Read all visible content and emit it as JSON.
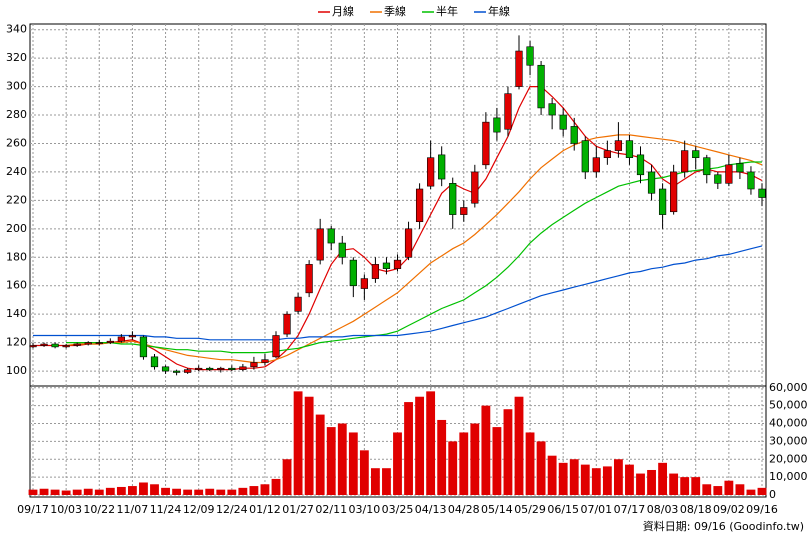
{
  "chart_data": {
    "type": "candlestick",
    "source": "資料日期: 09/16 (Goodinfo.tw)",
    "categories": [
      "09/17",
      null,
      null,
      "10/03",
      null,
      null,
      "10/22",
      null,
      null,
      "11/07",
      null,
      null,
      "11/24",
      null,
      null,
      "12/09",
      null,
      null,
      "12/24",
      null,
      null,
      "01/12",
      null,
      null,
      "01/27",
      null,
      null,
      "02/11",
      null,
      null,
      "03/10",
      null,
      null,
      "03/25",
      null,
      null,
      "04/13",
      null,
      null,
      "04/28",
      null,
      null,
      "05/14",
      null,
      null,
      "05/29",
      null,
      null,
      "06/15",
      null,
      null,
      "07/01",
      null,
      null,
      "07/17",
      null,
      null,
      "08/03",
      null,
      null,
      "08/18",
      null,
      null,
      "09/02",
      null,
      null,
      "09/16"
    ],
    "ohlc": [
      [
        117,
        120,
        116,
        118
      ],
      [
        118,
        120,
        117,
        119
      ],
      [
        119,
        120,
        116,
        117
      ],
      [
        117,
        119,
        116,
        118
      ],
      [
        118,
        120,
        117,
        119
      ],
      [
        119,
        121,
        118,
        120
      ],
      [
        120,
        122,
        118,
        120
      ],
      [
        120,
        123,
        119,
        121
      ],
      [
        121,
        126,
        120,
        124
      ],
      [
        124,
        128,
        122,
        125
      ],
      [
        124,
        125,
        108,
        110
      ],
      [
        110,
        112,
        101,
        103
      ],
      [
        103,
        104,
        98,
        100
      ],
      [
        100,
        101,
        97,
        99
      ],
      [
        99,
        102,
        98,
        101
      ],
      [
        101,
        104,
        100,
        102
      ],
      [
        102,
        103,
        100,
        101
      ],
      [
        101,
        103,
        99,
        102
      ],
      [
        102,
        104,
        100,
        101
      ],
      [
        101,
        105,
        100,
        103
      ],
      [
        103,
        110,
        101,
        106
      ],
      [
        106,
        112,
        104,
        108
      ],
      [
        110,
        128,
        109,
        125
      ],
      [
        126,
        142,
        124,
        140
      ],
      [
        142,
        155,
        140,
        152
      ],
      [
        155,
        178,
        152,
        175
      ],
      [
        178,
        207,
        175,
        200
      ],
      [
        200,
        202,
        185,
        190
      ],
      [
        190,
        195,
        175,
        180
      ],
      [
        178,
        180,
        152,
        160
      ],
      [
        158,
        168,
        150,
        165
      ],
      [
        165,
        180,
        162,
        175
      ],
      [
        176,
        180,
        168,
        172
      ],
      [
        172,
        182,
        170,
        178
      ],
      [
        180,
        205,
        178,
        200
      ],
      [
        205,
        232,
        200,
        228
      ],
      [
        230,
        262,
        228,
        250
      ],
      [
        252,
        258,
        230,
        235
      ],
      [
        232,
        236,
        200,
        210
      ],
      [
        210,
        220,
        205,
        215
      ],
      [
        218,
        245,
        215,
        240
      ],
      [
        245,
        282,
        242,
        275
      ],
      [
        278,
        285,
        262,
        268
      ],
      [
        270,
        300,
        265,
        295
      ],
      [
        300,
        336,
        298,
        325
      ],
      [
        328,
        332,
        308,
        315
      ],
      [
        315,
        318,
        280,
        285
      ],
      [
        288,
        292,
        270,
        280
      ],
      [
        280,
        285,
        265,
        270
      ],
      [
        272,
        278,
        255,
        260
      ],
      [
        262,
        265,
        235,
        240
      ],
      [
        240,
        258,
        236,
        250
      ],
      [
        250,
        262,
        245,
        255
      ],
      [
        255,
        275,
        250,
        262
      ],
      [
        262,
        266,
        245,
        250
      ],
      [
        252,
        258,
        232,
        238
      ],
      [
        240,
        245,
        220,
        225
      ],
      [
        228,
        232,
        200,
        210
      ],
      [
        212,
        245,
        210,
        240
      ],
      [
        240,
        262,
        236,
        255
      ],
      [
        255,
        258,
        242,
        250
      ],
      [
        250,
        252,
        232,
        238
      ],
      [
        238,
        240,
        228,
        232
      ],
      [
        232,
        252,
        230,
        245
      ],
      [
        246,
        250,
        235,
        240
      ],
      [
        240,
        244,
        224,
        228
      ],
      [
        228,
        232,
        216,
        222
      ]
    ],
    "up_color": "#e00000",
    "down_color": "#00b000",
    "ylim": [
      89.5,
      344
    ],
    "yticks": [
      100,
      120,
      140,
      160,
      180,
      200,
      220,
      240,
      260,
      280,
      300,
      320,
      340
    ],
    "grid": true,
    "series": [
      {
        "name": "月線",
        "color": "#e00000",
        "values": [
          118,
          118,
          118,
          118,
          118,
          119,
          119,
          120,
          121,
          122,
          119,
          115,
          110,
          105,
          102,
          101,
          101,
          101,
          101,
          102,
          102,
          103,
          108,
          115,
          125,
          140,
          158,
          175,
          185,
          186,
          180,
          172,
          170,
          172,
          180,
          195,
          210,
          225,
          232,
          228,
          225,
          235,
          250,
          265,
          285,
          300,
          300,
          293,
          285,
          275,
          265,
          258,
          255,
          253,
          252,
          250,
          245,
          235,
          230,
          235,
          240,
          242,
          240,
          240,
          240,
          238,
          234
        ]
      },
      {
        "name": "季線",
        "color": "#f07000",
        "values": [
          null,
          null,
          null,
          118,
          119,
          119,
          119,
          120,
          120,
          121,
          119,
          117,
          115,
          113,
          111,
          110,
          109,
          108,
          108,
          107,
          106,
          106,
          108,
          111,
          115,
          119,
          123,
          127,
          131,
          135,
          140,
          145,
          150,
          155,
          162,
          169,
          176,
          181,
          186,
          190,
          196,
          203,
          210,
          218,
          226,
          235,
          243,
          249,
          255,
          259,
          262,
          264,
          265,
          266,
          266,
          265,
          264,
          263,
          262,
          260,
          258,
          256,
          254,
          252,
          250,
          248,
          245
        ]
      },
      {
        "name": "半年",
        "color": "#00c000",
        "values": [
          null,
          null,
          null,
          120,
          120,
          120,
          120,
          120,
          119,
          119,
          118,
          117,
          116,
          115,
          115,
          114,
          114,
          114,
          113,
          113,
          113,
          113,
          114,
          115,
          116,
          118,
          120,
          121,
          122,
          123,
          124,
          125,
          126,
          128,
          132,
          136,
          140,
          144,
          147,
          150,
          155,
          160,
          166,
          173,
          181,
          190,
          197,
          203,
          208,
          213,
          218,
          222,
          226,
          230,
          232,
          234,
          235,
          236,
          238,
          240,
          241,
          242,
          243,
          245,
          246,
          247,
          247
        ]
      },
      {
        "name": "年線",
        "color": "#0050d0",
        "values": [
          125,
          125,
          125,
          125,
          125,
          125,
          125,
          125,
          125,
          125,
          125,
          124,
          124,
          123,
          123,
          123,
          122,
          122,
          122,
          122,
          122,
          122,
          122,
          123,
          123,
          124,
          124,
          124,
          124,
          125,
          125,
          125,
          125,
          125,
          126,
          127,
          128,
          130,
          132,
          134,
          136,
          138,
          141,
          144,
          147,
          150,
          153,
          155,
          157,
          159,
          161,
          163,
          165,
          167,
          169,
          170,
          172,
          173,
          175,
          176,
          178,
          179,
          181,
          182,
          184,
          186,
          188
        ]
      }
    ],
    "volume": {
      "color": "#e00000",
      "values": [
        3000,
        3500,
        3000,
        2500,
        3000,
        3500,
        3000,
        4000,
        4500,
        5000,
        7000,
        6000,
        4000,
        3500,
        3000,
        3000,
        3500,
        3000,
        3000,
        4000,
        5000,
        6000,
        9000,
        20000,
        58000,
        55000,
        45000,
        38000,
        40000,
        35000,
        25000,
        15000,
        15000,
        35000,
        52000,
        55000,
        58000,
        42000,
        30000,
        35000,
        40000,
        50000,
        38000,
        48000,
        55000,
        35000,
        30000,
        22000,
        18000,
        20000,
        17000,
        15000,
        16000,
        20000,
        17000,
        12000,
        14000,
        18000,
        12000,
        10000,
        10000,
        6000,
        5000,
        8000,
        6000,
        3000,
        4000
      ],
      "ylim": [
        0,
        61000
      ],
      "yticks": [
        0,
        {
          "value": 10000,
          "label": "10,000"
        },
        {
          "value": 20000,
          "label": "20,000"
        },
        {
          "value": 30000,
          "label": "30,000"
        },
        {
          "value": 40000,
          "label": "40,000"
        },
        {
          "value": 50000,
          "label": "50,000"
        },
        {
          "value": 60000,
          "label": "60,000"
        }
      ]
    }
  }
}
